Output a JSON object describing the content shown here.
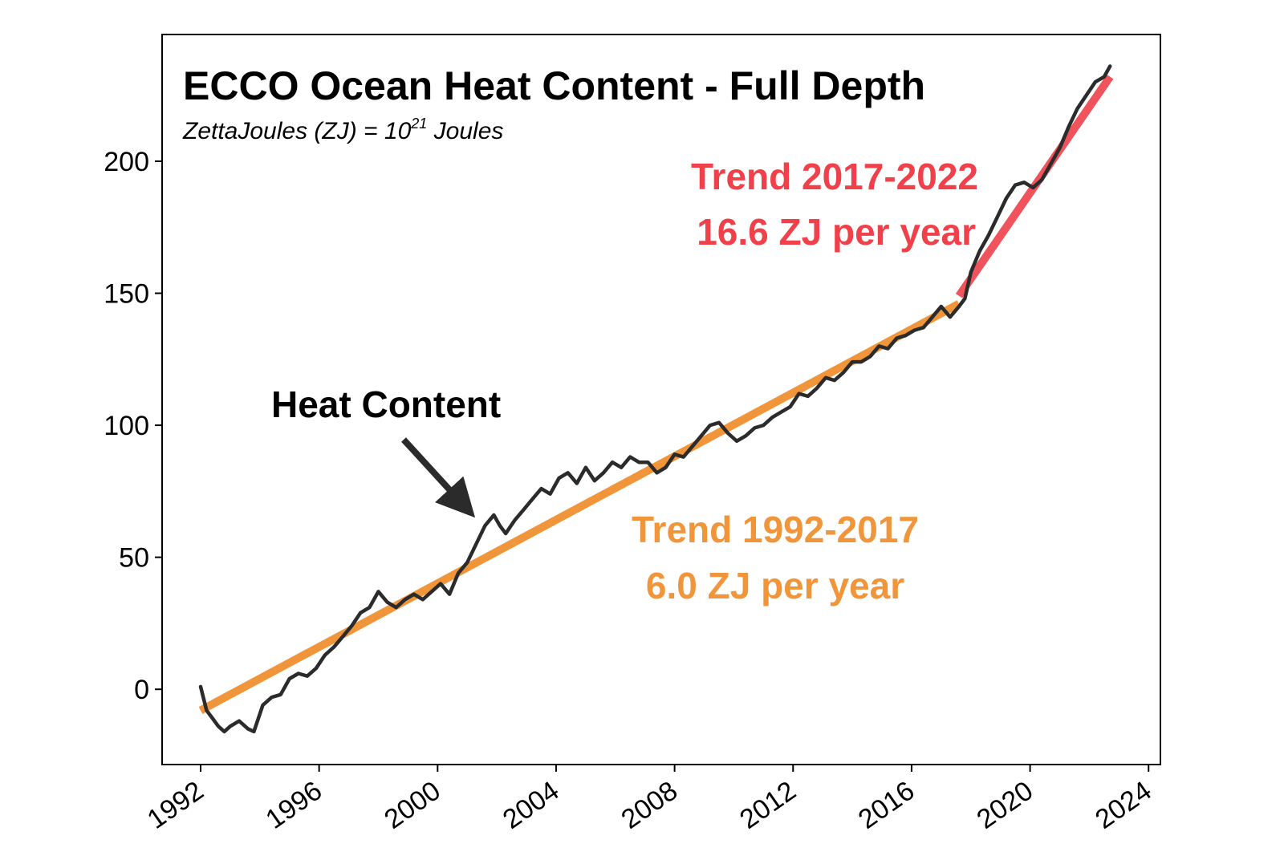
{
  "chart_data": {
    "type": "line",
    "title": "ECCO Ocean Heat Content - Full Depth",
    "subtitle": {
      "text": "ZettaJoules (ZJ) = 10",
      "superscript": "21",
      "suffix": " Joules"
    },
    "xlabel": "",
    "ylabel": "",
    "xlim": [
      1990.7,
      2024.4
    ],
    "ylim": [
      -28.5,
      248
    ],
    "x_ticks": [
      1992,
      1996,
      2000,
      2004,
      2008,
      2012,
      2016,
      2020,
      2024
    ],
    "y_ticks": [
      0,
      50,
      100,
      150,
      200
    ],
    "grid": false,
    "series": [
      {
        "label": "Heat Content",
        "color": "#2b2b2b",
        "x": [
          1992.0,
          1992.2,
          1992.4,
          1992.6,
          1992.8,
          1993.0,
          1993.3,
          1993.6,
          1993.8,
          1994.1,
          1994.4,
          1994.7,
          1995.0,
          1995.3,
          1995.6,
          1995.9,
          1996.2,
          1996.5,
          1996.8,
          1997.1,
          1997.4,
          1997.7,
          1998.0,
          1998.3,
          1998.6,
          1998.9,
          1999.2,
          1999.5,
          1999.8,
          2000.1,
          2000.4,
          2000.7,
          2001.0,
          2001.3,
          2001.6,
          2001.9,
          2002.1,
          2002.3,
          2002.6,
          2002.9,
          2003.2,
          2003.5,
          2003.8,
          2004.1,
          2004.4,
          2004.7,
          2005.0,
          2005.3,
          2005.6,
          2005.9,
          2006.2,
          2006.5,
          2006.8,
          2007.1,
          2007.4,
          2007.7,
          2008.0,
          2008.3,
          2008.6,
          2008.9,
          2009.2,
          2009.5,
          2009.8,
          2010.1,
          2010.4,
          2010.7,
          2011.0,
          2011.3,
          2011.6,
          2011.9,
          2012.2,
          2012.5,
          2012.8,
          2013.1,
          2013.4,
          2013.7,
          2014.0,
          2014.3,
          2014.6,
          2014.9,
          2015.2,
          2015.5,
          2015.8,
          2016.1,
          2016.4,
          2016.7,
          2017.0,
          2017.3,
          2017.6,
          2017.8,
          2018.0,
          2018.3,
          2018.6,
          2018.9,
          2019.2,
          2019.5,
          2019.8,
          2020.1,
          2020.4,
          2020.7,
          2021.0,
          2021.3,
          2021.6,
          2021.9,
          2022.2,
          2022.5,
          2022.7
        ],
        "y": [
          1,
          -8,
          -11,
          -14,
          -16,
          -14,
          -12,
          -15,
          -16,
          -6,
          -3,
          -2,
          4,
          6,
          5,
          8,
          13,
          16,
          20,
          24,
          29,
          31,
          37,
          33,
          31,
          34,
          36,
          34,
          37,
          40,
          36,
          44,
          48,
          55,
          62,
          66,
          62,
          59,
          64,
          68,
          72,
          76,
          74,
          80,
          82,
          78,
          84,
          79,
          82,
          86,
          84,
          88,
          86,
          86,
          82,
          84,
          89,
          88,
          92,
          96,
          100,
          101,
          97,
          94,
          96,
          99,
          100,
          103,
          105,
          107,
          112,
          111,
          114,
          118,
          117,
          120,
          124,
          124,
          126,
          130,
          129,
          133,
          134,
          136,
          137,
          141,
          145,
          141,
          145,
          148,
          158,
          166,
          172,
          179,
          186,
          191,
          192,
          190,
          193,
          199,
          205,
          213,
          220,
          225,
          230,
          232,
          236
        ]
      }
    ],
    "trends": [
      {
        "label_line1": "Trend 1992-2017",
        "label_line2": "6.0 ZJ per year",
        "color": "#f0953a",
        "x": [
          1992.0,
          2017.6
        ],
        "y": [
          -8,
          146
        ]
      },
      {
        "label_line1": "Trend 2017-2022",
        "label_line2": "16.6 ZJ per year",
        "color": "#f0404a",
        "x": [
          2017.6,
          2022.7
        ],
        "y": [
          149,
          232
        ]
      }
    ],
    "annotations": [
      {
        "text": "Heat Content",
        "arrow_to": {
          "x": 2001.5,
          "y": 68
        }
      }
    ]
  }
}
